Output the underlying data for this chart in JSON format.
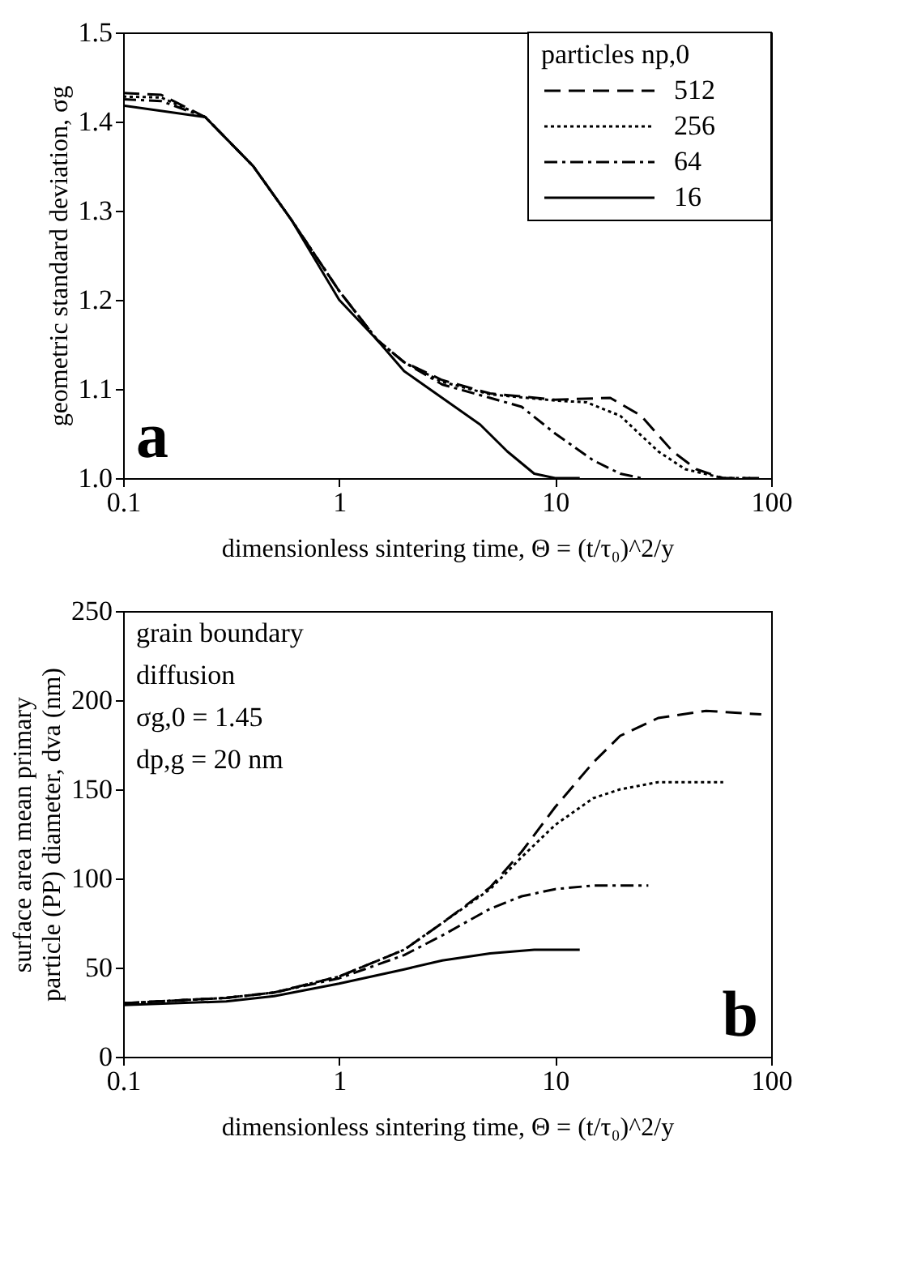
{
  "chart_data": [
    {
      "type": "line",
      "xlabel": "dimensionless sintering time, Θ = (t/τ₀)^2/y",
      "ylabel": "geometric standard deviation, σg",
      "legend_title": "particles np,0",
      "legend": "top right",
      "log": "x",
      "grid": false,
      "xlim": [
        0.1,
        100
      ],
      "xticks": [
        0.1,
        1,
        10,
        100
      ],
      "ylim": [
        1.0,
        1.5
      ],
      "yticks": [
        {
          "value": 1.0,
          "label": "1.0"
        },
        1.1,
        1.2,
        1.3,
        1.4,
        1.5
      ],
      "annotations": [
        "a"
      ],
      "series": [
        {
          "name": "512",
          "color": "#000000",
          "line_style": "dashed",
          "x": [
            0.1,
            0.15,
            0.24,
            0.4,
            0.6,
            1,
            1.5,
            2,
            3,
            5,
            10,
            18,
            25,
            35,
            45,
            60,
            90
          ],
          "values": [
            1.432,
            1.43,
            1.405,
            1.35,
            1.29,
            1.21,
            1.155,
            1.13,
            1.11,
            1.095,
            1.088,
            1.09,
            1.07,
            1.03,
            1.01,
            1.0,
            1.0
          ]
        },
        {
          "name": "256",
          "color": "#000000",
          "line_style": "dotted",
          "x": [
            0.1,
            0.15,
            0.24,
            0.4,
            0.6,
            1,
            1.5,
            2,
            3,
            5,
            10,
            14,
            20,
            30,
            40,
            60,
            80
          ],
          "values": [
            1.428,
            1.427,
            1.405,
            1.35,
            1.29,
            1.21,
            1.155,
            1.13,
            1.108,
            1.094,
            1.087,
            1.085,
            1.07,
            1.03,
            1.01,
            1.0,
            1.0
          ]
        },
        {
          "name": "64",
          "color": "#000000",
          "line_style": "dashdot",
          "x": [
            0.1,
            0.15,
            0.24,
            0.4,
            0.6,
            1,
            1.5,
            2,
            3,
            5,
            7,
            10,
            15,
            20,
            25
          ],
          "values": [
            1.425,
            1.423,
            1.405,
            1.35,
            1.29,
            1.21,
            1.155,
            1.13,
            1.105,
            1.09,
            1.08,
            1.05,
            1.02,
            1.005,
            1.0
          ]
        },
        {
          "name": "16",
          "color": "#000000",
          "line_style": "solid",
          "x": [
            0.1,
            0.24,
            0.4,
            0.6,
            1,
            1.5,
            2,
            3,
            4.5,
            6,
            8,
            10,
            13
          ],
          "values": [
            1.418,
            1.405,
            1.35,
            1.29,
            1.2,
            1.155,
            1.12,
            1.09,
            1.06,
            1.03,
            1.005,
            1.0,
            1.0
          ]
        }
      ]
    },
    {
      "type": "line",
      "xlabel": "dimensionless sintering time, Θ = (t/τ₀)^2/y",
      "ylabel": "surface area mean primary\nparticle (PP) diameter, dva (nm)",
      "log": "x",
      "grid": false,
      "xlim": [
        0.1,
        100
      ],
      "xticks": [
        0.1,
        1,
        10,
        100
      ],
      "ylim": [
        0,
        250
      ],
      "yticks": [
        0,
        50,
        100,
        150,
        200,
        250
      ],
      "annotations": [
        "grain boundary",
        "diffusion",
        "σg,0 = 1.45",
        "dp,g = 20 nm",
        "b"
      ],
      "series": [
        {
          "color": "#000000",
          "line_style": "dashed",
          "x": [
            0.1,
            0.3,
            0.5,
            1,
            2,
            3,
            5,
            7,
            10,
            15,
            20,
            30,
            50,
            90
          ],
          "values": [
            30,
            33,
            36,
            45,
            60,
            75,
            95,
            115,
            140,
            165,
            180,
            190,
            194,
            192
          ]
        },
        {
          "color": "#000000",
          "line_style": "dotted",
          "x": [
            0.1,
            0.3,
            0.5,
            1,
            2,
            3,
            5,
            7,
            10,
            15,
            20,
            30,
            60
          ],
          "values": [
            30,
            33,
            36,
            45,
            60,
            75,
            94,
            112,
            130,
            145,
            150,
            154,
            154
          ]
        },
        {
          "color": "#000000",
          "line_style": "dashdot",
          "x": [
            0.1,
            0.3,
            0.5,
            1,
            2,
            3,
            5,
            7,
            10,
            15,
            27
          ],
          "values": [
            30,
            33,
            36,
            44,
            57,
            68,
            83,
            90,
            94,
            96,
            96
          ]
        },
        {
          "color": "#000000",
          "line_style": "solid",
          "x": [
            0.1,
            0.3,
            0.5,
            1,
            2,
            3,
            5,
            8,
            13
          ],
          "values": [
            29,
            31,
            34,
            41,
            49,
            54,
            58,
            60,
            60
          ]
        }
      ]
    }
  ]
}
